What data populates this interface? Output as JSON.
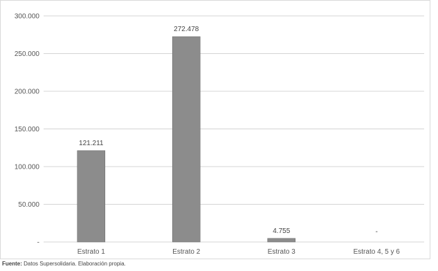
{
  "chart_data": {
    "type": "bar",
    "title": "",
    "xlabel": "",
    "ylabel": "",
    "categories": [
      "Estrato 1",
      "Estrato 2",
      "Estrato 3",
      "Estrato 4, 5 y 6"
    ],
    "values": [
      121211,
      272478,
      4755,
      0
    ],
    "data_labels": [
      "121.211",
      "272.478",
      "4.755",
      "-"
    ],
    "ylim": [
      0,
      300000
    ],
    "yticks": [
      0,
      50000,
      100000,
      150000,
      200000,
      250000,
      300000
    ],
    "ytick_labels": [
      "-",
      "50.000",
      "100.000",
      "150.000",
      "200.000",
      "250.000",
      "300.000"
    ],
    "grid": true,
    "bar_color": "#8c8c8c"
  },
  "source": {
    "label": "Fuente:",
    "text": " Datos Supersolidaria. Elaboración propia."
  }
}
